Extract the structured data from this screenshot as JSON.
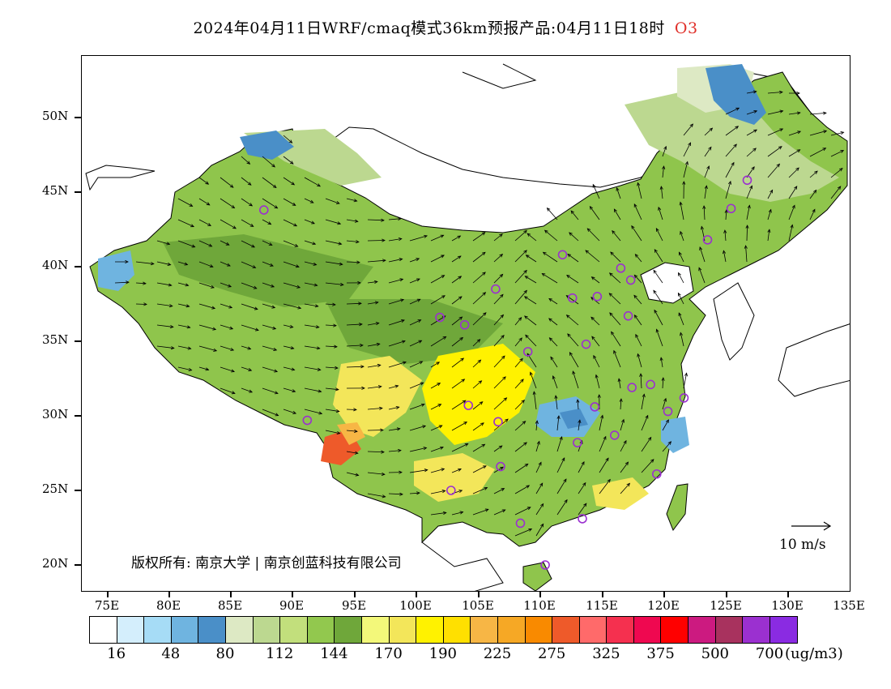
{
  "title": {
    "main": "2024年04月11日WRF/cmaq模式36km预报产品:04月11日18时",
    "species": "O3"
  },
  "map": {
    "lat_labels": [
      "50N",
      "45N",
      "40N",
      "35N",
      "30N",
      "25N",
      "20N"
    ],
    "lon_labels": [
      "75E",
      "80E",
      "85E",
      "90E",
      "95E",
      "100E",
      "105E",
      "110E",
      "115E",
      "120E",
      "125E",
      "130E",
      "135E"
    ],
    "copyright": "版权所有: 南京大学 | 南京创蓝科技有限公司",
    "wind_reference": "10 m/s"
  },
  "colorbar": {
    "colors": [
      "#ffffff",
      "#d4eefc",
      "#a6dcf6",
      "#6fb4e0",
      "#4a8fc8",
      "#dde9c4",
      "#bcd890",
      "#c2df7c",
      "#92c84e",
      "#6fa73a",
      "#f3f87a",
      "#f3e65a",
      "#fff200",
      "#ffe000",
      "#f7b645",
      "#f6a825",
      "#f98a00",
      "#ee5a2a",
      "#ff6a6a",
      "#f5304f",
      "#ef0850",
      "#ff0000",
      "#cc1a80",
      "#a8325e",
      "#9b30d0",
      "#8a2be2"
    ],
    "labels": [
      "16",
      "48",
      "80",
      "112",
      "144",
      "170",
      "190",
      "225",
      "275",
      "325",
      "375",
      "500",
      "700"
    ],
    "unit": "(ug/m3)"
  },
  "stations": [
    {
      "lon": 87.6,
      "lat": 43.8
    },
    {
      "lon": 91.1,
      "lat": 29.7
    },
    {
      "lon": 101.8,
      "lat": 36.6
    },
    {
      "lon": 103.8,
      "lat": 36.1
    },
    {
      "lon": 106.3,
      "lat": 38.5
    },
    {
      "lon": 111.7,
      "lat": 40.8
    },
    {
      "lon": 112.5,
      "lat": 37.9
    },
    {
      "lon": 114.5,
      "lat": 38.0
    },
    {
      "lon": 116.4,
      "lat": 39.9
    },
    {
      "lon": 117.2,
      "lat": 39.1
    },
    {
      "lon": 117.0,
      "lat": 36.7
    },
    {
      "lon": 113.6,
      "lat": 34.8
    },
    {
      "lon": 108.9,
      "lat": 34.3
    },
    {
      "lon": 104.1,
      "lat": 30.7
    },
    {
      "lon": 106.5,
      "lat": 29.6
    },
    {
      "lon": 106.7,
      "lat": 26.6
    },
    {
      "lon": 102.7,
      "lat": 25.0
    },
    {
      "lon": 108.3,
      "lat": 22.8
    },
    {
      "lon": 110.3,
      "lat": 20.0
    },
    {
      "lon": 113.3,
      "lat": 23.1
    },
    {
      "lon": 112.9,
      "lat": 28.2
    },
    {
      "lon": 114.3,
      "lat": 30.6
    },
    {
      "lon": 115.9,
      "lat": 28.7
    },
    {
      "lon": 119.3,
      "lat": 26.1
    },
    {
      "lon": 120.2,
      "lat": 30.3
    },
    {
      "lon": 121.5,
      "lat": 31.2
    },
    {
      "lon": 118.8,
      "lat": 32.1
    },
    {
      "lon": 117.3,
      "lat": 31.9
    },
    {
      "lon": 123.4,
      "lat": 41.8
    },
    {
      "lon": 125.3,
      "lat": 43.9
    },
    {
      "lon": 126.6,
      "lat": 45.8
    }
  ]
}
